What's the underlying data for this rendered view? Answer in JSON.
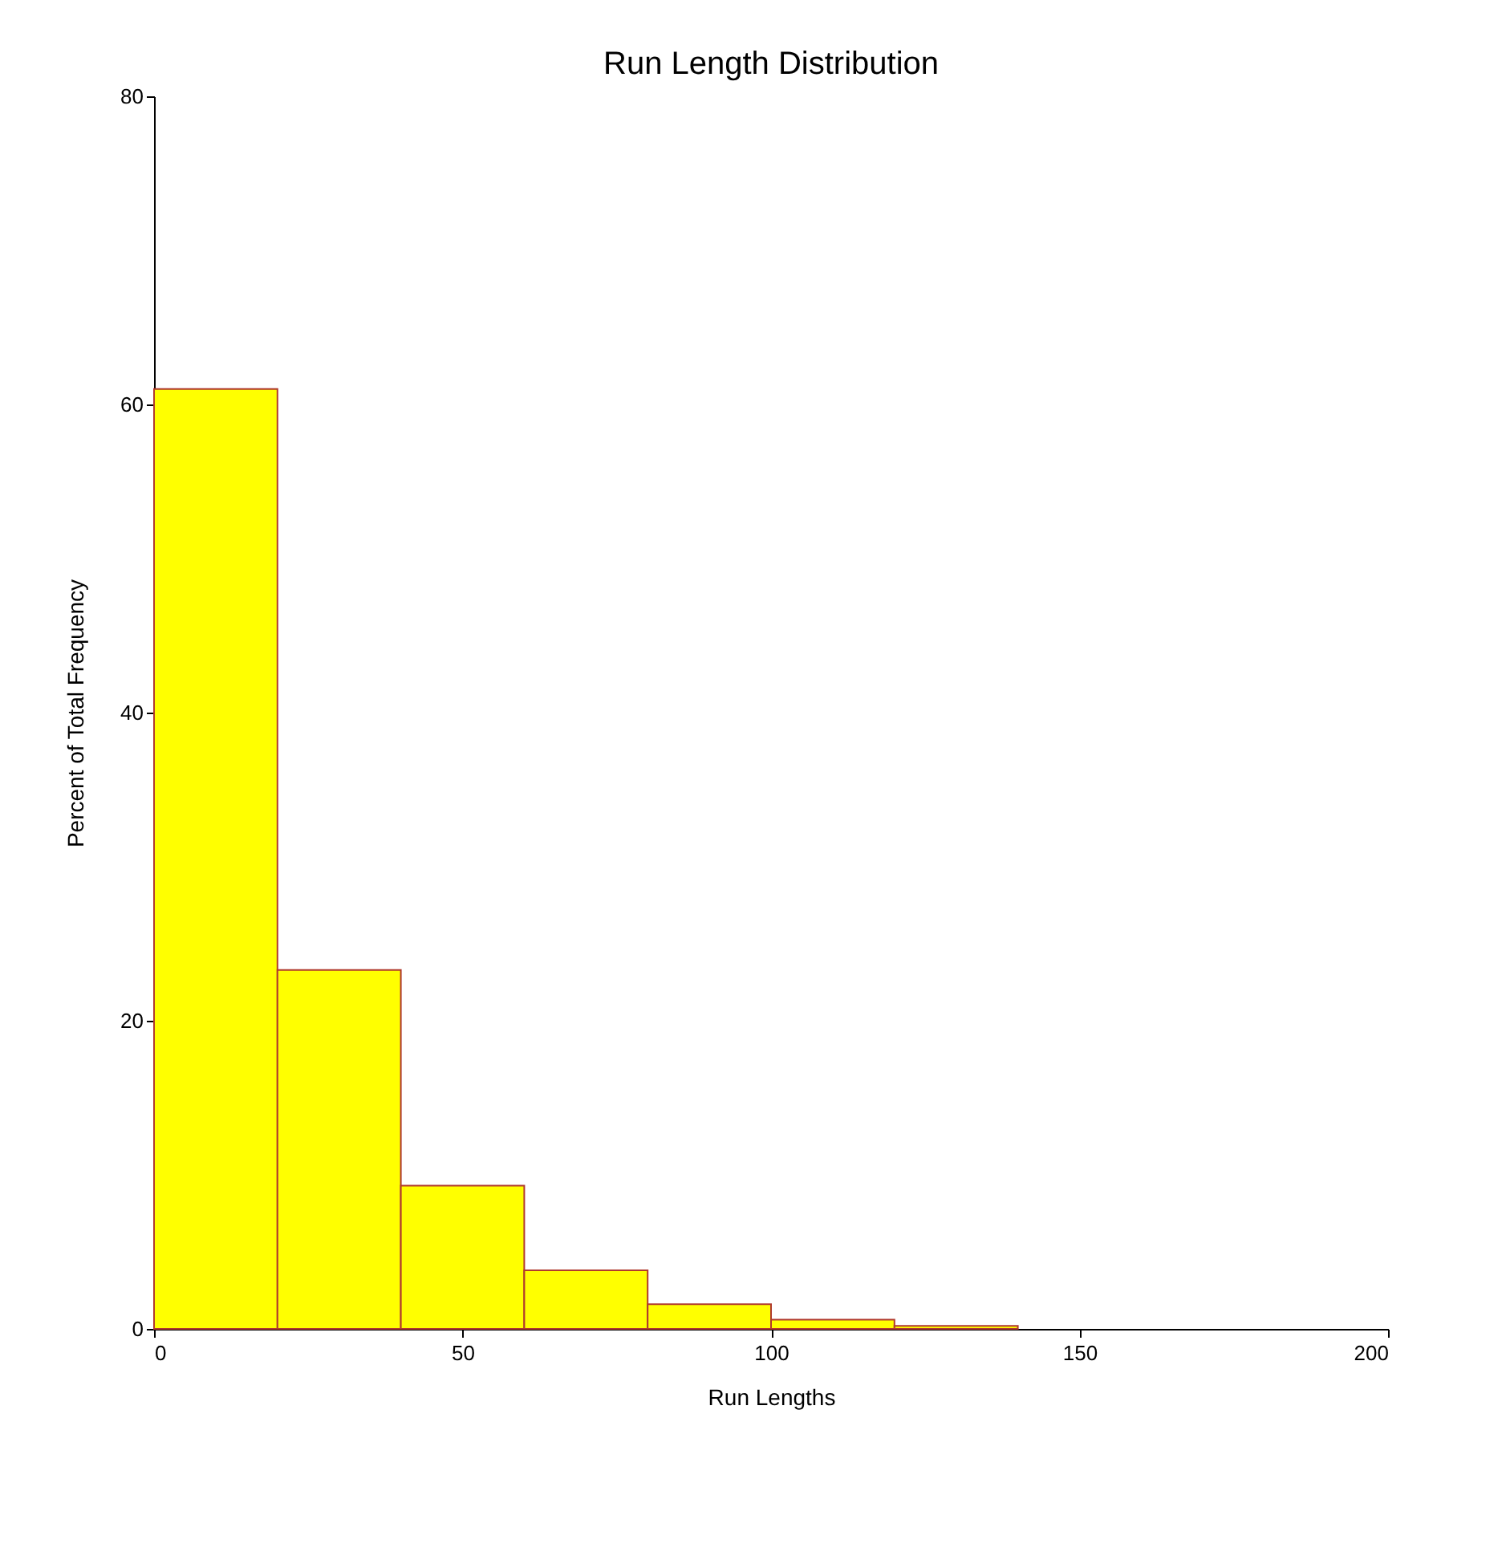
{
  "chart_data": {
    "type": "histogram",
    "title": "Run Length Distribution",
    "xlabel": "Run Lengths",
    "ylabel": "Percent of Total Frequency",
    "bins": [
      0,
      20,
      40,
      60,
      80,
      100,
      120,
      140
    ],
    "values": [
      61,
      23.3,
      9.3,
      3.8,
      1.6,
      0.6,
      0.2
    ],
    "color": "#ffff00",
    "xlim": [
      0,
      200
    ],
    "xticks": [
      0,
      50,
      100,
      150,
      200
    ],
    "ylim": [
      0,
      80
    ],
    "yticks": [
      0,
      20,
      40,
      60,
      80
    ],
    "grid": false
  }
}
